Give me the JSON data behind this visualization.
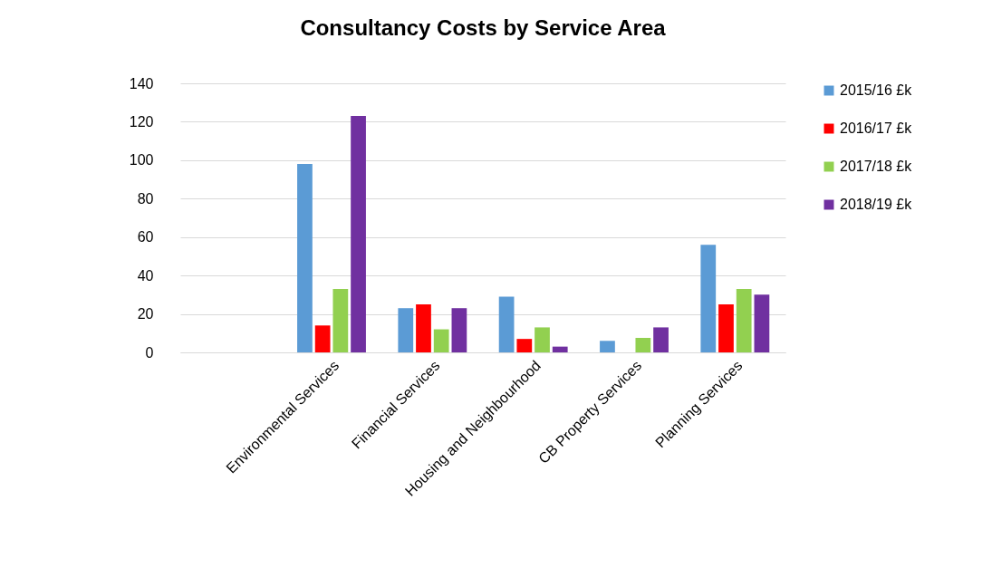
{
  "chart_data": {
    "type": "bar",
    "title": "Consultancy Costs by Service Area",
    "categories": [
      null,
      "Environmental Services",
      "Financial Services",
      "Housing and Neighbourhood",
      "CB Property Services",
      "Planning Services"
    ],
    "series": [
      {
        "name": "2015/16 £k",
        "color": "#5b9bd5",
        "values": [
          null,
          98,
          23,
          29,
          6,
          56
        ]
      },
      {
        "name": "2016/17 £k",
        "color": "#ff0000",
        "values": [
          null,
          14,
          25,
          7,
          null,
          25
        ]
      },
      {
        "name": "2017/18 £k",
        "color": "#92d050",
        "values": [
          null,
          33,
          12,
          13,
          7.5,
          33
        ]
      },
      {
        "name": "2018/19 £k",
        "color": "#7030a0",
        "values": [
          null,
          123,
          23,
          3,
          13,
          30
        ]
      }
    ],
    "ylim": [
      0,
      140
    ],
    "yticks": [
      0,
      20,
      40,
      60,
      80,
      100,
      120,
      140
    ],
    "grid": "y",
    "legend": "right"
  }
}
